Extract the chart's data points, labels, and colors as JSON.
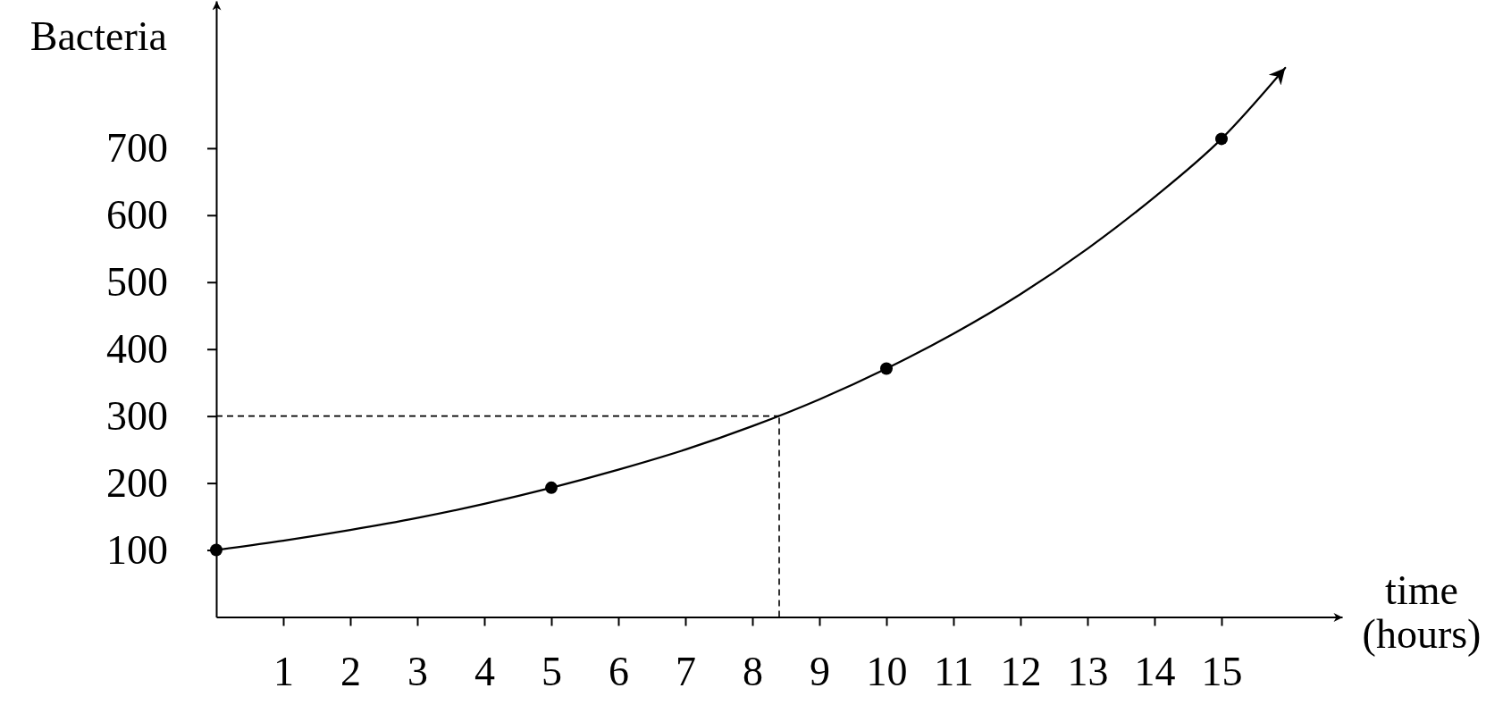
{
  "chart_data": {
    "type": "line",
    "xlabel": "time\n(hours)",
    "ylabel": "Bacteria",
    "xlim": [
      0,
      16.8
    ],
    "ylim": [
      0,
      920
    ],
    "xticks": [
      1,
      2,
      3,
      4,
      5,
      6,
      7,
      8,
      9,
      10,
      11,
      12,
      13,
      14,
      15
    ],
    "yticks": [
      100,
      200,
      300,
      400,
      500,
      600,
      700
    ],
    "series": [
      {
        "color": "#000000",
        "x": [
          0,
          1,
          2,
          3,
          4,
          5,
          6,
          7,
          8,
          9,
          10,
          11,
          12,
          13,
          14,
          15,
          15.95
        ],
        "values": [
          100,
          114,
          130,
          148,
          169,
          193,
          220,
          250,
          285,
          325,
          371,
          423,
          482,
          550,
          627,
          714,
          820
        ]
      },
      {
        "type": "scatter",
        "color": "#000000",
        "marker": "circle",
        "x": [
          0,
          5,
          10,
          15
        ],
        "values": [
          100,
          193,
          371,
          714
        ]
      }
    ],
    "ref_lines": [
      {
        "axis": "y",
        "value": 300,
        "color": "#000000",
        "line_style": "dashed"
      },
      {
        "axis": "x",
        "value": 8.4,
        "color": "#000000",
        "line_style": "dashed"
      }
    ]
  }
}
